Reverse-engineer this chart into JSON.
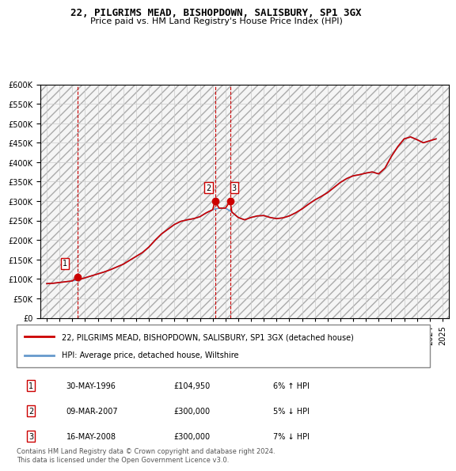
{
  "title": "22, PILGRIMS MEAD, BISHOPDOWN, SALISBURY, SP1 3GX",
  "subtitle": "Price paid vs. HM Land Registry's House Price Index (HPI)",
  "ylabel_ticks": [
    "£0",
    "£50K",
    "£100K",
    "£150K",
    "£200K",
    "£250K",
    "£300K",
    "£350K",
    "£400K",
    "£450K",
    "£500K",
    "£550K",
    "£600K"
  ],
  "ylim": [
    0,
    600000
  ],
  "yticks": [
    0,
    50000,
    100000,
    150000,
    200000,
    250000,
    300000,
    350000,
    400000,
    450000,
    500000,
    550000,
    600000
  ],
  "sale_dates": [
    1996.41,
    2007.18,
    2008.37
  ],
  "sale_prices": [
    104950,
    300000,
    300000
  ],
  "sale_labels": [
    "1",
    "2",
    "3"
  ],
  "hpi_years": [
    1994.0,
    1994.5,
    1995.0,
    1995.5,
    1996.0,
    1996.5,
    1997.0,
    1997.5,
    1998.0,
    1998.5,
    1999.0,
    1999.5,
    2000.0,
    2000.5,
    2001.0,
    2001.5,
    2002.0,
    2002.5,
    2003.0,
    2003.5,
    2004.0,
    2004.5,
    2005.0,
    2005.5,
    2006.0,
    2006.5,
    2007.0,
    2007.5,
    2008.0,
    2008.5,
    2009.0,
    2009.5,
    2010.0,
    2010.5,
    2011.0,
    2011.5,
    2012.0,
    2012.5,
    2013.0,
    2013.5,
    2014.0,
    2014.5,
    2015.0,
    2015.5,
    2016.0,
    2016.5,
    2017.0,
    2017.5,
    2018.0,
    2018.5,
    2019.0,
    2019.5,
    2020.0,
    2020.5,
    2021.0,
    2021.5,
    2022.0,
    2022.5,
    2023.0,
    2023.5,
    2024.0,
    2024.5
  ],
  "hpi_values": [
    88000,
    89000,
    91000,
    93000,
    95000,
    98000,
    103000,
    108000,
    113000,
    118000,
    124000,
    131000,
    138000,
    148000,
    158000,
    168000,
    182000,
    200000,
    216000,
    228000,
    240000,
    248000,
    252000,
    255000,
    260000,
    270000,
    278000,
    282000,
    282000,
    272000,
    258000,
    252000,
    258000,
    262000,
    263000,
    258000,
    255000,
    257000,
    262000,
    270000,
    280000,
    292000,
    303000,
    312000,
    322000,
    335000,
    348000,
    358000,
    365000,
    368000,
    372000,
    375000,
    370000,
    385000,
    415000,
    440000,
    460000,
    465000,
    458000,
    450000,
    455000,
    460000
  ],
  "red_line_years": [
    1994.0,
    1994.5,
    1995.0,
    1995.5,
    1996.0,
    1996.41,
    1996.5,
    1997.0,
    1997.5,
    1998.0,
    1998.5,
    1999.0,
    1999.5,
    2000.0,
    2000.5,
    2001.0,
    2001.5,
    2002.0,
    2002.5,
    2003.0,
    2003.5,
    2004.0,
    2004.5,
    2005.0,
    2005.5,
    2006.0,
    2006.5,
    2007.0,
    2007.18,
    2007.5,
    2008.0,
    2008.37,
    2008.5,
    2009.0,
    2009.5,
    2010.0,
    2010.5,
    2011.0,
    2011.5,
    2012.0,
    2012.5,
    2013.0,
    2013.5,
    2014.0,
    2014.5,
    2015.0,
    2015.5,
    2016.0,
    2016.5,
    2017.0,
    2017.5,
    2018.0,
    2018.5,
    2019.0,
    2019.5,
    2020.0,
    2020.5,
    2021.0,
    2021.5,
    2022.0,
    2022.5,
    2023.0,
    2023.5,
    2024.0,
    2024.5
  ],
  "red_line_values": [
    88000,
    89000,
    91000,
    93000,
    95000,
    104950,
    98000,
    103000,
    108000,
    113000,
    118000,
    124000,
    131000,
    138000,
    148000,
    158000,
    168000,
    182000,
    200000,
    216000,
    228000,
    240000,
    248000,
    252000,
    255000,
    260000,
    270000,
    278000,
    300000,
    282000,
    282000,
    300000,
    272000,
    258000,
    252000,
    258000,
    262000,
    263000,
    258000,
    255000,
    257000,
    262000,
    270000,
    280000,
    292000,
    303000,
    312000,
    322000,
    335000,
    348000,
    358000,
    365000,
    368000,
    372000,
    375000,
    370000,
    385000,
    415000,
    440000,
    460000,
    465000,
    458000,
    450000,
    455000,
    460000
  ],
  "vline_dates": [
    1996.41,
    2007.18,
    2008.37
  ],
  "xtick_years": [
    1994,
    1995,
    1996,
    1997,
    1998,
    1999,
    2000,
    2001,
    2002,
    2003,
    2004,
    2005,
    2006,
    2007,
    2008,
    2009,
    2010,
    2011,
    2012,
    2013,
    2014,
    2015,
    2016,
    2017,
    2018,
    2019,
    2020,
    2021,
    2022,
    2023,
    2024,
    2025
  ],
  "legend_line1": "22, PILGRIMS MEAD, BISHOPDOWN, SALISBURY, SP1 3GX (detached house)",
  "legend_line2": "HPI: Average price, detached house, Wiltshire",
  "table_rows": [
    [
      "1",
      "30-MAY-1996",
      "£104,950",
      "6% ↑ HPI"
    ],
    [
      "2",
      "09-MAR-2007",
      "£300,000",
      "5% ↓ HPI"
    ],
    [
      "3",
      "16-MAY-2008",
      "£300,000",
      "7% ↓ HPI"
    ]
  ],
  "footnote": "Contains HM Land Registry data © Crown copyright and database right 2024.\nThis data is licensed under the Open Government Licence v3.0.",
  "red_color": "#cc0000",
  "blue_color": "#6699cc",
  "vline_color": "#cc0000",
  "hatch_color": "#cccccc",
  "bg_hatch": true
}
